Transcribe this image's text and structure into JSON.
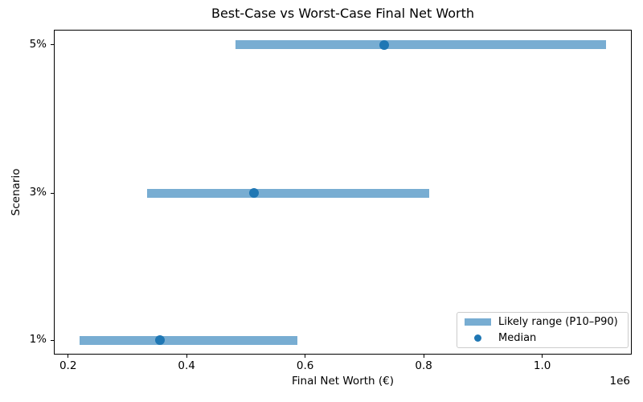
{
  "chart_data": {
    "type": "bar",
    "orientation": "horizontal",
    "title": "Best-Case vs Worst-Case Final Net Worth",
    "xlabel": "Final Net Worth (€)",
    "ylabel": "Scenario",
    "x_axis_offset_label": "1e6",
    "x_unit_scale": 1000000,
    "xlim": [
      176000,
      1151000
    ],
    "xticks": {
      "values": [
        200000,
        400000,
        600000,
        800000,
        1000000
      ],
      "labels": [
        "0.2",
        "0.4",
        "0.6",
        "0.8",
        "1.0"
      ]
    },
    "grid": false,
    "categories": [
      "5%",
      "3%",
      "1%"
    ],
    "scenarios": [
      {
        "label": "5%",
        "p10": 483000,
        "median": 734000,
        "p90": 1107000
      },
      {
        "label": "3%",
        "p10": 333000,
        "median": 514000,
        "p90": 809000
      },
      {
        "label": "1%",
        "p10": 219000,
        "median": 355000,
        "p90": 587000
      }
    ],
    "legend": {
      "position": "lower right",
      "entries": [
        {
          "label": "Likely range (P10–P90)",
          "marker": "patch",
          "color": "#78add2"
        },
        {
          "label": "Median",
          "marker": "dot",
          "color": "#1f77b4"
        }
      ]
    },
    "colors": {
      "range_bar": "#78add2",
      "median_dot": "#1f77b4",
      "axis": "#000000",
      "background": "#ffffff"
    }
  }
}
